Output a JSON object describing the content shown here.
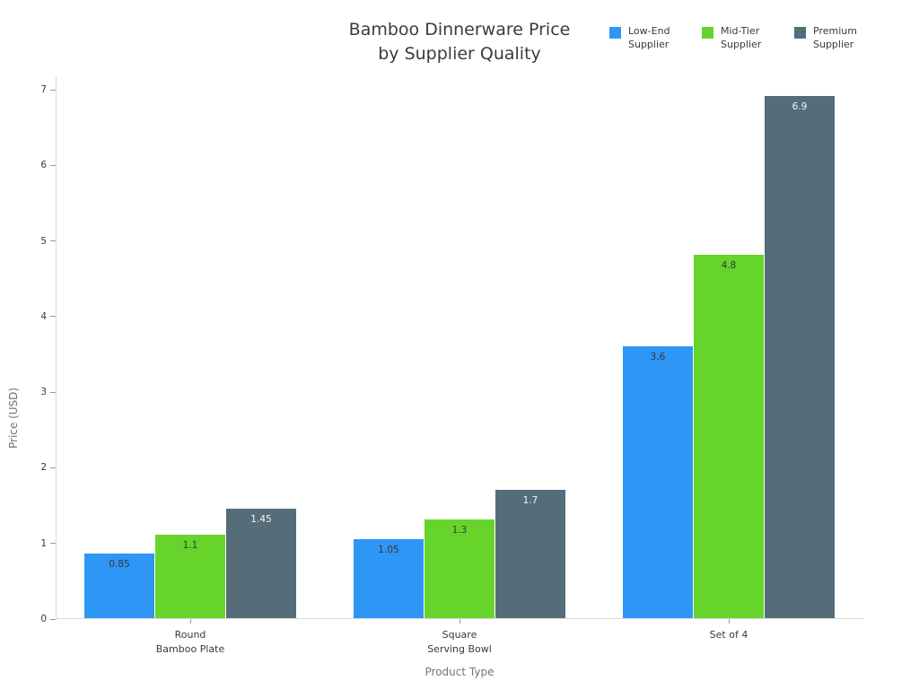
{
  "chart_data": {
    "type": "bar",
    "title": "Bamboo Dinnerware Price by Supplier Quality",
    "title_lines": [
      "Bamboo Dinnerware Price",
      "by Supplier Quality"
    ],
    "xlabel": "Product Type",
    "ylabel": "Price (USD)",
    "ylim": [
      0,
      7
    ],
    "yticks": [
      0,
      1,
      2,
      3,
      4,
      5,
      6,
      7
    ],
    "grid": false,
    "legend_position": "top-right",
    "categories": [
      [
        "Round",
        "Bamboo Plate"
      ],
      [
        "Square",
        "Serving Bowl"
      ],
      [
        "Set of 4"
      ]
    ],
    "series": [
      {
        "name": "Low-End Supplier",
        "color": "#2e96f5",
        "label_color": "#33383d",
        "values": [
          0.85,
          1.05,
          3.6
        ]
      },
      {
        "name": "Mid-Tier Supplier",
        "color": "#66d42a",
        "label_color": "#33383d",
        "values": [
          1.1,
          1.3,
          4.8
        ]
      },
      {
        "name": "Premium Supplier",
        "color": "#556d78",
        "label_color": "#f4f6f7",
        "values": [
          1.45,
          1.7,
          6.9
        ]
      }
    ]
  }
}
